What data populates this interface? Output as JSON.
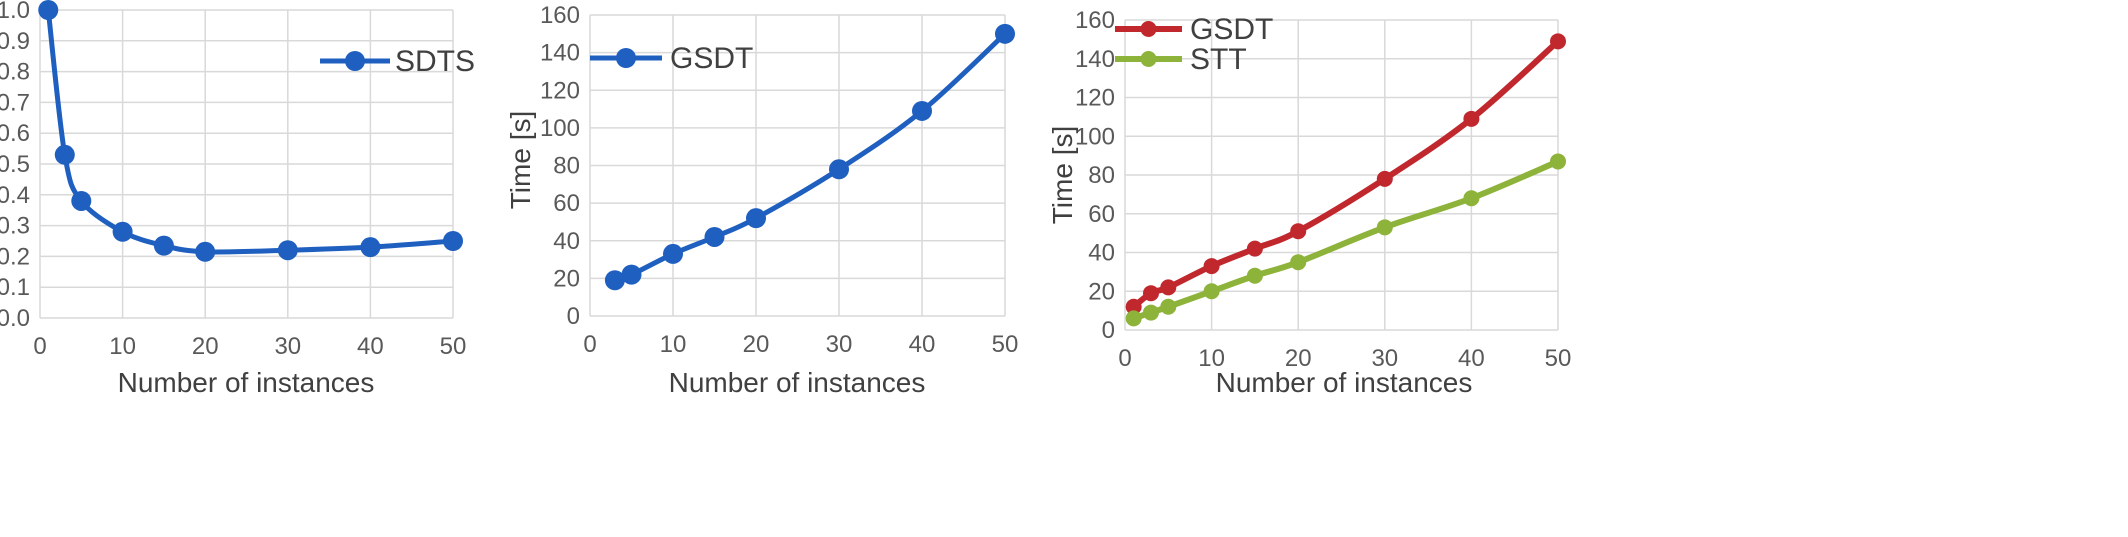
{
  "chart_data": [
    {
      "type": "line",
      "title": "",
      "xlabel": "Number of instances",
      "ylabel": "",
      "xlim": [
        0,
        50
      ],
      "ylim": [
        0,
        1.0
      ],
      "xticks": [
        0,
        10,
        20,
        30,
        40,
        50
      ],
      "xtick_labels": [
        "0",
        "10",
        "20",
        "30",
        "40",
        "50"
      ],
      "yticks": [
        0,
        0.1,
        0.2,
        0.3,
        0.4,
        0.5,
        0.6,
        0.7,
        0.8,
        0.9,
        1.0
      ],
      "ytick_labels": [
        "0.0",
        "0.1",
        "0.2",
        "0.3",
        "0.4",
        "0.5",
        "0.6",
        "0.7",
        "0.8",
        "0.9",
        "1.0"
      ],
      "grid": true,
      "legend": "top-right",
      "series": [
        {
          "name": "SDTS",
          "color": "#1f5fbf",
          "x": [
            1,
            3,
            5,
            10,
            15,
            20,
            30,
            40,
            50
          ],
          "y": [
            1.0,
            0.53,
            0.38,
            0.28,
            0.235,
            0.215,
            0.22,
            0.23,
            0.25
          ]
        }
      ]
    },
    {
      "type": "line",
      "title": "",
      "xlabel": "Number of instances",
      "ylabel": "Time [s]",
      "xlim": [
        0,
        50
      ],
      "ylim": [
        0,
        160
      ],
      "xticks": [
        0,
        10,
        20,
        30,
        40,
        50
      ],
      "xtick_labels": [
        "0",
        "10",
        "20",
        "30",
        "40",
        "50"
      ],
      "yticks": [
        0,
        20,
        40,
        60,
        80,
        100,
        120,
        140,
        160
      ],
      "ytick_labels": [
        "0",
        "20",
        "40",
        "60",
        "80",
        "100",
        "120",
        "140",
        "160"
      ],
      "grid": true,
      "legend": "top-left",
      "series": [
        {
          "name": "GSDT",
          "color": "#1f5fbf",
          "x": [
            3,
            5,
            10,
            15,
            20,
            30,
            40,
            50
          ],
          "y": [
            19,
            22,
            33,
            42,
            52,
            78,
            109,
            150
          ]
        }
      ]
    },
    {
      "type": "line",
      "title": "",
      "xlabel": "Number of instances",
      "ylabel": "Time [s]",
      "xlim": [
        0,
        50
      ],
      "ylim": [
        0,
        160
      ],
      "xticks": [
        0,
        10,
        20,
        30,
        40,
        50
      ],
      "xtick_labels": [
        "0",
        "10",
        "20",
        "30",
        "40",
        "50"
      ],
      "yticks": [
        0,
        20,
        40,
        60,
        80,
        100,
        120,
        140,
        160
      ],
      "ytick_labels": [
        "0",
        "20",
        "40",
        "60",
        "80",
        "100",
        "120",
        "140",
        "160"
      ],
      "grid": true,
      "legend": "top-left",
      "series": [
        {
          "name": "GSDT",
          "color": "#c0282d",
          "x": [
            1,
            3,
            5,
            10,
            15,
            20,
            30,
            40,
            50
          ],
          "y": [
            12,
            19,
            22,
            33,
            42,
            51,
            78,
            109,
            149
          ]
        },
        {
          "name": "STT",
          "color": "#8db33a",
          "x": [
            1,
            3,
            5,
            10,
            15,
            20,
            30,
            40,
            50
          ],
          "y": [
            6,
            9,
            12,
            20,
            28,
            35,
            53,
            68,
            87
          ]
        }
      ]
    }
  ]
}
